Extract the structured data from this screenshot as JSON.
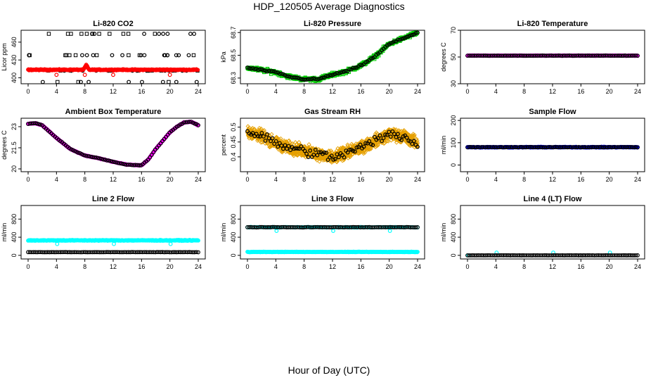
{
  "title": "HDP_120505  Average Diagnostics",
  "footer": "Hour of Day (UTC)",
  "chart_data": [
    {
      "type": "scatter",
      "title": "Li-820 CO2",
      "ylabel": "Licor ppm",
      "xlim": [
        0,
        24
      ],
      "ylim": [
        390,
        480
      ],
      "yticks": [
        400,
        430,
        460
      ],
      "xticks": [
        0,
        4,
        8,
        12,
        16,
        20,
        24
      ],
      "series": [
        {
          "name": "scatter",
          "color": "#000000",
          "gen": "co2scatter"
        },
        {
          "name": "red",
          "color": "#ff0000",
          "gen": "co2red"
        }
      ]
    },
    {
      "type": "scatter",
      "title": "Li-820 Pressure",
      "ylabel": "kPa",
      "xlim": [
        0,
        24
      ],
      "ylim": [
        68.25,
        68.72
      ],
      "yticks": [
        68.3,
        68.5,
        68.7
      ],
      "xticks": [
        0,
        4,
        8,
        12,
        16,
        20,
        24
      ],
      "series": [
        {
          "name": "raw",
          "color": "#00cc00",
          "gen": "pressure",
          "shape": "square",
          "jitter": 0.02,
          "n": 360
        },
        {
          "name": "avg",
          "color": "#000000",
          "gen": "pressure",
          "jitter": 0.008,
          "n": 96
        }
      ]
    },
    {
      "type": "scatter",
      "title": "Li-820 Temperature",
      "ylabel": "degrees C",
      "xlim": [
        0,
        24
      ],
      "ylim": [
        30,
        70
      ],
      "yticks": [
        30,
        50,
        70
      ],
      "xticks": [
        0,
        4,
        8,
        12,
        16,
        20,
        24
      ],
      "series": [
        {
          "name": "raw",
          "color": "#ff00ff",
          "gen": "const",
          "value": 51,
          "jitter": 0.2,
          "n": 360
        },
        {
          "name": "avg",
          "color": "#000000",
          "gen": "const",
          "value": 51,
          "jitter": 0.1,
          "n": 96
        }
      ]
    },
    {
      "type": "scatter",
      "title": "Ambient Box Temperature",
      "ylabel": "degrees C",
      "xlim": [
        0,
        24
      ],
      "ylim": [
        19.8,
        23.6
      ],
      "yticks": [
        20.0,
        21.5,
        23.0
      ],
      "xticks": [
        0,
        4,
        8,
        12,
        16,
        20,
        24
      ],
      "series": [
        {
          "name": "raw",
          "color": "#ff00ff",
          "gen": "ambient",
          "jitter": 0.03,
          "n": 360
        },
        {
          "name": "avg",
          "color": "#000000",
          "gen": "ambient",
          "jitter": 0.02,
          "n": 96
        }
      ]
    },
    {
      "type": "scatter",
      "title": "Gas Stream RH",
      "ylabel": "percent",
      "xlim": [
        0,
        24
      ],
      "ylim": [
        0.35,
        0.53
      ],
      "yticks": [
        0.4,
        0.45,
        0.5
      ],
      "xticks": [
        0,
        4,
        8,
        12,
        16,
        20,
        24
      ],
      "series": [
        {
          "name": "raw",
          "color": "#e6a000",
          "gen": "rh",
          "shape": "diamond",
          "jitter": 0.025,
          "n": 1400
        },
        {
          "name": "avg",
          "color": "#000000",
          "gen": "rh",
          "jitter": 0.02,
          "n": 96
        }
      ]
    },
    {
      "type": "scatter",
      "title": "Sample Flow",
      "ylabel": "ml/min",
      "xlim": [
        0,
        24
      ],
      "ylim": [
        -30,
        210
      ],
      "yticks": [
        0,
        100,
        200
      ],
      "xticks": [
        0,
        4,
        8,
        12,
        16,
        20,
        24
      ],
      "series": [
        {
          "name": "raw",
          "color": "#0000ff",
          "gen": "flow",
          "value": 80,
          "jitter": 2,
          "n": 360
        },
        {
          "name": "avg",
          "color": "#000000",
          "gen": "flow",
          "value": 80,
          "jitter": 1,
          "n": 96
        }
      ]
    },
    {
      "type": "scatter",
      "title": "Line 2 Flow",
      "ylabel": "ml/min",
      "xlim": [
        0,
        24
      ],
      "ylim": [
        -80,
        1100
      ],
      "yticks": [
        0,
        400,
        800
      ],
      "xticks": [
        0,
        4,
        8,
        12,
        16,
        20,
        24
      ],
      "series": [
        {
          "name": "raw",
          "color": "#00ffff",
          "gen": "const",
          "value": 330,
          "jitter": 10,
          "n": 360,
          "dips": [
            4.1,
            12.1,
            20.1
          ],
          "dipValue": 250
        },
        {
          "name": "line",
          "color": "#000000",
          "gen": "const",
          "value": 70,
          "jitter": 3,
          "n": 96
        }
      ]
    },
    {
      "type": "scatter",
      "title": "Line 3 Flow",
      "ylabel": "ml/min",
      "xlim": [
        0,
        24
      ],
      "ylim": [
        -80,
        1100
      ],
      "yticks": [
        0,
        400,
        800
      ],
      "xticks": [
        0,
        4,
        8,
        12,
        16,
        20,
        24
      ],
      "series": [
        {
          "name": "raw-high",
          "color": "#00ffff",
          "gen": "const",
          "value": 620,
          "jitter": 8,
          "n": 100,
          "dips": [
            4.1,
            12.1,
            20.1
          ],
          "dipValue": 540
        },
        {
          "name": "avg-high",
          "color": "#000000",
          "gen": "const",
          "value": 620,
          "jitter": 5,
          "n": 96
        },
        {
          "name": "raw-low",
          "color": "#00ffff",
          "gen": "const",
          "value": 75,
          "jitter": 6,
          "n": 360
        }
      ]
    },
    {
      "type": "scatter",
      "title": "Line 4 (LT) Flow",
      "ylabel": "ml/min",
      "xlim": [
        0,
        24
      ],
      "ylim": [
        -80,
        1100
      ],
      "yticks": [
        0,
        400,
        800
      ],
      "xticks": [
        0,
        4,
        8,
        12,
        16,
        20,
        24
      ],
      "series": [
        {
          "name": "spikes",
          "color": "#00ffff",
          "gen": "spikes",
          "value": 0,
          "spikeX": [
            0.1,
            4.1,
            12.1,
            20.1
          ],
          "spikeValue": 60
        },
        {
          "name": "avg",
          "color": "#000000",
          "gen": "const",
          "value": 0,
          "jitter": 2,
          "n": 96
        }
      ]
    }
  ]
}
